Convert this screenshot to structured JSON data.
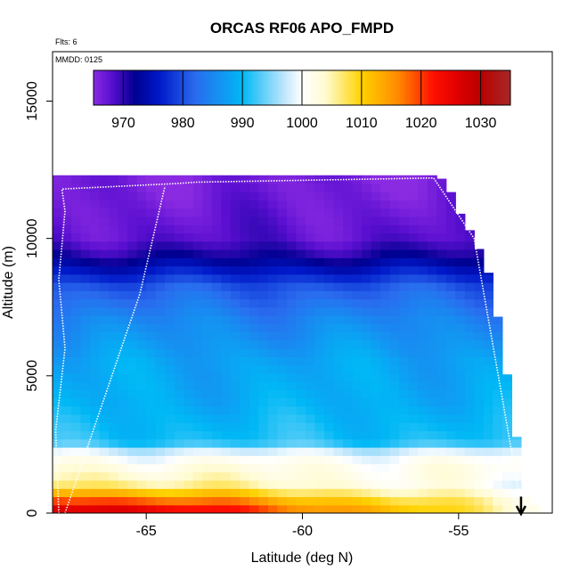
{
  "chart_data": {
    "type": "heatmap",
    "title": "ORCAS RF06 APO_FMPD",
    "subtitle_flights": "Flts: 6",
    "annotation_mmdd": "MMDD: 0125",
    "xlabel": "Latitude (deg N)",
    "ylabel": "Altitude (m)",
    "xlim": [
      -68,
      -52
    ],
    "ylim": [
      0,
      16800
    ],
    "xticks": [
      {
        "value": -65,
        "label": "-65"
      },
      {
        "value": -60,
        "label": "-60"
      },
      {
        "value": -55,
        "label": "-55"
      }
    ],
    "yticks": [
      {
        "value": 0,
        "label": "0"
      },
      {
        "value": 5000,
        "label": "5000"
      },
      {
        "value": 10000,
        "label": "10000"
      },
      {
        "value": 15000,
        "label": "15000"
      }
    ],
    "colorbar": {
      "min": 965,
      "max": 1035,
      "ticks": [
        {
          "value": 970,
          "label": "970"
        },
        {
          "value": 980,
          "label": "980"
        },
        {
          "value": 990,
          "label": "990"
        },
        {
          "value": 1000,
          "label": "1000"
        },
        {
          "value": 1010,
          "label": "1010"
        },
        {
          "value": 1020,
          "label": "1020"
        },
        {
          "value": 1030,
          "label": "1030"
        }
      ],
      "stops": [
        {
          "value": 965,
          "color": "#8a2be2"
        },
        {
          "value": 968,
          "color": "#5a0fd0"
        },
        {
          "value": 972,
          "color": "#000090"
        },
        {
          "value": 976,
          "color": "#0018c8"
        },
        {
          "value": 982,
          "color": "#2a6aee"
        },
        {
          "value": 990,
          "color": "#00b8f5"
        },
        {
          "value": 997,
          "color": "#bfe6fc"
        },
        {
          "value": 1000,
          "color": "#ffffff"
        },
        {
          "value": 1004,
          "color": "#fffbd0"
        },
        {
          "value": 1010,
          "color": "#ffd200"
        },
        {
          "value": 1016,
          "color": "#ff8c00"
        },
        {
          "value": 1022,
          "color": "#ff1000"
        },
        {
          "value": 1026,
          "color": "#e00000"
        },
        {
          "value": 1030,
          "color": "#b80000"
        },
        {
          "value": 1035,
          "color": "#a82828"
        }
      ]
    },
    "vertical_profile": [
      {
        "altitude": 0,
        "value": 1030
      },
      {
        "altitude": 300,
        "value": 1024
      },
      {
        "altitude": 700,
        "value": 1014
      },
      {
        "altitude": 1100,
        "value": 1006
      },
      {
        "altitude": 1600,
        "value": 1003
      },
      {
        "altitude": 2200,
        "value": 999
      },
      {
        "altitude": 2600,
        "value": 991
      },
      {
        "altitude": 4000,
        "value": 989
      },
      {
        "altitude": 5500,
        "value": 988
      },
      {
        "altitude": 7000,
        "value": 985
      },
      {
        "altitude": 8200,
        "value": 981
      },
      {
        "altitude": 8800,
        "value": 976
      },
      {
        "altitude": 9400,
        "value": 971
      },
      {
        "altitude": 10000,
        "value": 968
      },
      {
        "altitude": 11000,
        "value": 967
      },
      {
        "altitude": 12300,
        "value": 966
      }
    ],
    "surface_gradient": [
      {
        "lat": -68,
        "value": 1031
      },
      {
        "lat": -64,
        "value": 1026
      },
      {
        "lat": -60,
        "value": 1018
      },
      {
        "lat": -56,
        "value": 1010
      },
      {
        "lat": -53,
        "value": 1003
      }
    ],
    "data_ceiling": [
      {
        "lat": -68.0,
        "alt": 12300
      },
      {
        "lat": -55.8,
        "alt": 12300
      },
      {
        "lat": -55.4,
        "alt": 12100
      },
      {
        "lat": -55.0,
        "alt": 11000
      },
      {
        "lat": -54.6,
        "alt": 10200
      },
      {
        "lat": -54.3,
        "alt": 9500
      },
      {
        "lat": -54.0,
        "alt": 8600
      },
      {
        "lat": -53.8,
        "alt": 7500
      },
      {
        "lat": -53.6,
        "alt": 6100
      },
      {
        "lat": -53.4,
        "alt": 4700
      },
      {
        "lat": -53.2,
        "alt": 3200
      },
      {
        "lat": -53.0,
        "alt": 1500
      },
      {
        "lat": -52.8,
        "alt": 300
      }
    ],
    "flight_track": [
      {
        "lat": -67.8,
        "alt": 0
      },
      {
        "lat": -67.9,
        "alt": 3000
      },
      {
        "lat": -67.6,
        "alt": 6000
      },
      {
        "lat": -67.8,
        "alt": 8500
      },
      {
        "lat": -67.6,
        "alt": 11000
      },
      {
        "lat": -67.7,
        "alt": 11800
      },
      {
        "lat": -64.0,
        "alt": 12000
      },
      {
        "lat": -63.4,
        "alt": 12050
      },
      {
        "lat": -55.8,
        "alt": 12200
      },
      {
        "lat": -54.5,
        "alt": 10000
      },
      {
        "lat": -53.0,
        "alt": 300
      }
    ],
    "flight_track_leg2": [
      {
        "lat": -67.6,
        "alt": 0
      },
      {
        "lat": -65.2,
        "alt": 8000
      },
      {
        "lat": -64.4,
        "alt": 11900
      }
    ],
    "arrow": {
      "lat": -53.0,
      "alt_top": 600,
      "alt_bottom": 0,
      "direction": "down"
    }
  }
}
